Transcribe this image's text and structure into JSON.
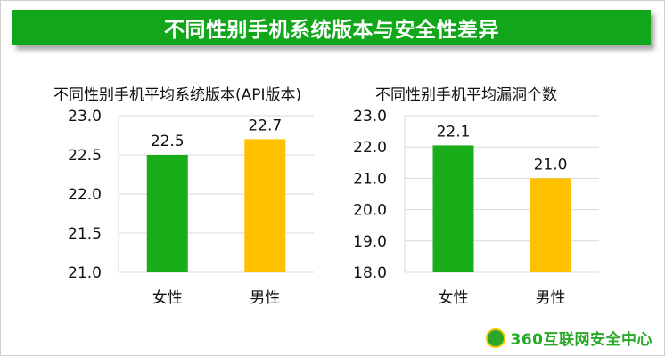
{
  "banner": {
    "title": "不同性别手机系统版本与安全性差异"
  },
  "footer": {
    "brand": "360互联网安全中心"
  },
  "chart_data": [
    {
      "type": "bar",
      "title": "不同性别手机平均系统版本(API版本)",
      "categories": [
        "女性",
        "男性"
      ],
      "values": [
        22.5,
        22.7
      ],
      "data_labels": [
        "22.5",
        "22.7"
      ],
      "colors": [
        "#1aad1a",
        "#ffc000"
      ],
      "ylim": [
        21.0,
        23.0
      ],
      "yticks": [
        "21.0",
        "21.5",
        "22.0",
        "22.5",
        "23.0"
      ],
      "grid": true
    },
    {
      "type": "bar",
      "title": "不同性别手机平均漏洞个数",
      "categories": [
        "女性",
        "男性"
      ],
      "values": [
        22.05,
        21.0
      ],
      "data_labels": [
        "22.1",
        "21.0"
      ],
      "colors": [
        "#1aad1a",
        "#ffc000"
      ],
      "ylim": [
        18.0,
        23.0
      ],
      "yticks": [
        "18.0",
        "19.0",
        "20.0",
        "21.0",
        "22.0",
        "23.0"
      ],
      "grid": true
    }
  ]
}
